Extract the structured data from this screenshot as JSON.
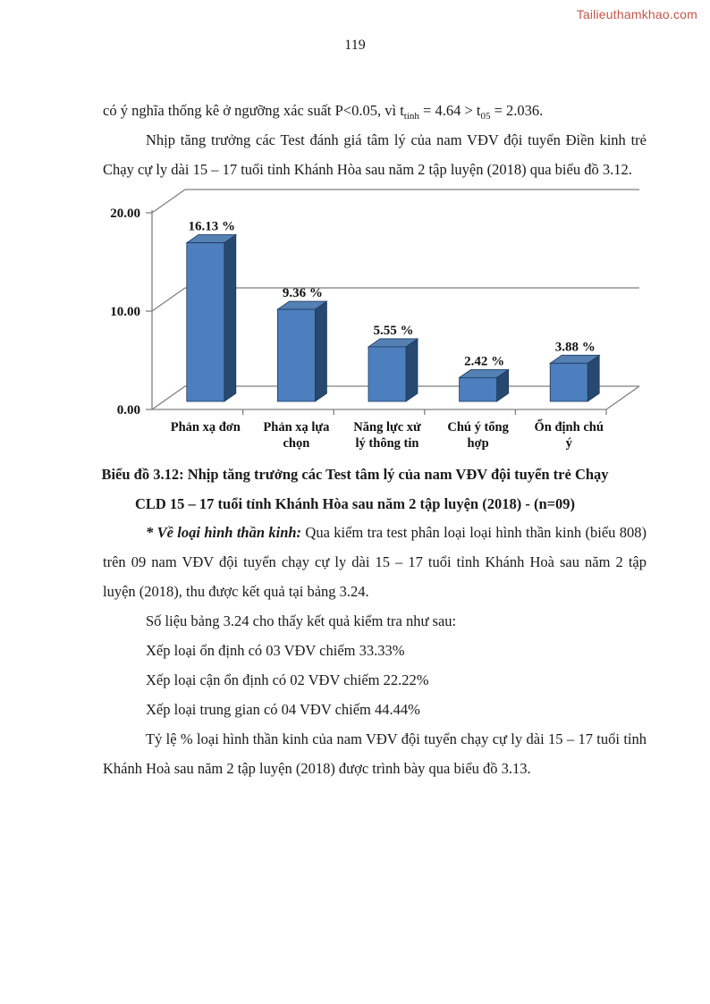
{
  "page": {
    "watermark": "Tailieuthamkhao.com",
    "number": "119"
  },
  "intro": {
    "p1_seg1": "có ý nghĩa thống kê ở ngưỡng xác suất P<0.05, vì t",
    "p1_sub1": "tính",
    "p1_seg2": " = 4.64 > t",
    "p1_sub2": "05",
    "p1_seg3": " = 2.036.",
    "p2": "Nhịp tăng trưởng các Test đánh giá tâm lý của nam VĐV đội tuyển Điền kinh trẻ Chạy cự ly dài 15 – 17 tuổi tỉnh Khánh Hòa sau năm 2 tập luyện (2018) qua biểu đồ 3.12."
  },
  "chart_data": {
    "type": "bar",
    "style": "3d-column",
    "title": "",
    "xlabel": "",
    "ylabel": "",
    "categories": [
      "Phản xạ đơn",
      "Phản xạ lựa chọn",
      "Năng lực xử lý thông tin",
      "Chú ý tổng hợp",
      "Ổn định chú ý"
    ],
    "categories_lines": [
      [
        "Phản xạ đơn"
      ],
      [
        "Phản xạ lựa",
        "chọn"
      ],
      [
        "Năng lực xử",
        "lý thông tin"
      ],
      [
        "Chú ý tổng",
        "hợp"
      ],
      [
        "Ổn định chú",
        "ý"
      ]
    ],
    "values": [
      16.13,
      9.36,
      5.55,
      2.42,
      3.88
    ],
    "data_labels": [
      "16.13 %",
      "9.36 %",
      "5.55 %",
      "2.42 %",
      "3.88 %"
    ],
    "y_ticks": [
      "0.00",
      "10.00",
      "20.00"
    ],
    "ylim": [
      0,
      20
    ],
    "grid": true,
    "legend": "none",
    "colors": {
      "bar_front": "#4d7ebd",
      "bar_top": "#5580b4",
      "bar_side": "#27496f",
      "bar_edge": "#1b3a5f",
      "axis_line": "#7f7f7f"
    }
  },
  "caption": {
    "line1": "Biểu đồ 3.12: Nhịp tăng trưởng các Test tâm lý của nam VĐV đội tuyển trẻ Chạy",
    "line2": "CLD 15 – 17 tuổi tỉnh Khánh Hòa sau năm 2 tập luyện (2018) - (n=09)"
  },
  "body": {
    "p3_lead": "* Về loại hình thần kinh:",
    "p3_rest": " Qua kiểm tra test phân loại loại hình thần kinh (biểu 808) trên 09 nam VĐV đội tuyển chạy cự ly dài 15 – 17 tuổi tỉnh Khánh Hoà sau năm 2 tập luyện (2018), thu được kết quả tại bảng 3.24.",
    "p4": "Số liệu bảng 3.24 cho thấy kết quả kiểm tra như sau:",
    "p5": "Xếp loại ổn định có 03 VĐV chiếm 33.33%",
    "p6": "Xếp loại cận ổn định có 02 VĐV chiếm 22.22%",
    "p7": "Xếp loại trung gian có 04 VĐV chiếm 44.44%",
    "p8": "Tỷ lệ % loại hình thần kinh của nam VĐV đội tuyển chạy cự ly dài 15 – 17 tuổi tỉnh Khánh Hoà sau năm 2 tập luyện (2018) được trình bày qua biểu đồ 3.13."
  }
}
